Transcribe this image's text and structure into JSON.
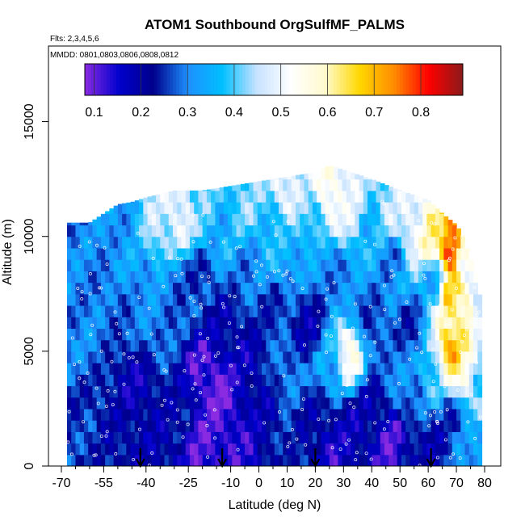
{
  "chart_data": {
    "type": "heatmap",
    "title": "ATOM1 Southbound OrgSulfMF_PALMS",
    "subtitle_flights": "Flts: 2,3,4,5,6",
    "subtitle_dates": "MMDD: 0801,0803,0806,0808,0812",
    "xlabel": "Latitude (deg N)",
    "ylabel": "Altitude (m)",
    "xlim": [
      -70,
      80
    ],
    "ylim": [
      0,
      17500
    ],
    "x_ticks": [
      -70,
      -55,
      -40,
      -25,
      -10,
      0,
      10,
      20,
      30,
      40,
      50,
      60,
      70,
      80
    ],
    "x_tick_labels": [
      "-70",
      "-55",
      "-40",
      "-25",
      "-10",
      "0",
      "10",
      "20",
      "30",
      "40",
      "50",
      "60",
      "70",
      "80"
    ],
    "x_minor_ticks": [
      -65,
      -60,
      -50,
      -45,
      -35,
      -30,
      -20,
      -15,
      -5,
      5,
      15,
      25,
      35,
      45,
      55,
      65,
      75
    ],
    "y_ticks": [
      0,
      5000,
      10000,
      15000
    ],
    "y_tick_labels": [
      "0",
      "5000",
      "10000",
      "15000"
    ],
    "colorbar": {
      "range": [
        0.08,
        0.89
      ],
      "ticks": [
        0.1,
        0.2,
        0.3,
        0.4,
        0.5,
        0.6,
        0.7,
        0.8
      ],
      "tick_labels": [
        "0.1",
        "0.2",
        "0.3",
        "0.4",
        "0.5",
        "0.6",
        "0.7",
        "0.8"
      ],
      "colors": [
        "#8a2be2",
        "#0000cd",
        "#00008b",
        "#1e90ff",
        "#00bfff",
        "#c6e2ff",
        "#ffffff",
        "#fffacd",
        "#ffd700",
        "#ff8c00",
        "#ff0000",
        "#8b1a1a"
      ]
    },
    "flight_arrows_latitude": [
      -42,
      -13,
      20,
      61
    ],
    "grid": false,
    "field": {
      "lat_range": [
        -68,
        79
      ],
      "alt_layers_m": [
        0,
        500,
        1000,
        1500,
        2000,
        2500,
        3000,
        3500,
        4000,
        4500,
        5000,
        5500,
        6000,
        6500,
        7000,
        7500,
        8000,
        8500,
        9000,
        9500,
        10000,
        10500,
        11000,
        11500,
        12000,
        12500
      ],
      "ceiling_m": [
        [
          -68,
          10600
        ],
        [
          -60,
          10600
        ],
        [
          -55,
          11000
        ],
        [
          -50,
          11400
        ],
        [
          -45,
          11500
        ],
        [
          -40,
          11700
        ],
        [
          -30,
          12000
        ],
        [
          -20,
          12000
        ],
        [
          -10,
          12200
        ],
        [
          0,
          12400
        ],
        [
          10,
          12600
        ],
        [
          20,
          12800
        ],
        [
          25,
          13100
        ],
        [
          30,
          12900
        ],
        [
          40,
          12500
        ],
        [
          50,
          12000
        ],
        [
          60,
          11600
        ],
        [
          65,
          11000
        ],
        [
          70,
          10500
        ],
        [
          75,
          9500
        ],
        [
          79,
          7000
        ]
      ],
      "anchors": [
        [
          -60,
          1000,
          0.25
        ],
        [
          -60,
          6000,
          0.3
        ],
        [
          -60,
          9500,
          0.3
        ],
        [
          -52,
          2000,
          0.22
        ],
        [
          -52,
          7000,
          0.28
        ],
        [
          -50,
          10000,
          0.32
        ],
        [
          -44,
          500,
          0.2
        ],
        [
          -44,
          3500,
          0.18
        ],
        [
          -44,
          9000,
          0.33
        ],
        [
          -36,
          1500,
          0.2
        ],
        [
          -36,
          6000,
          0.3
        ],
        [
          -36,
          10500,
          0.45
        ],
        [
          -28,
          2500,
          0.22
        ],
        [
          -28,
          7500,
          0.28
        ],
        [
          -28,
          11000,
          0.5
        ],
        [
          -20,
          1000,
          0.12
        ],
        [
          -20,
          4000,
          0.12
        ],
        [
          -20,
          8000,
          0.25
        ],
        [
          -20,
          11000,
          0.4
        ],
        [
          -15,
          3500,
          0.09
        ],
        [
          -12,
          1500,
          0.12
        ],
        [
          -12,
          6000,
          0.2
        ],
        [
          -12,
          10000,
          0.35
        ],
        [
          -5,
          500,
          0.15
        ],
        [
          -5,
          4500,
          0.18
        ],
        [
          -5,
          8500,
          0.3
        ],
        [
          -5,
          11500,
          0.42
        ],
        [
          3,
          2000,
          0.2
        ],
        [
          3,
          6500,
          0.25
        ],
        [
          3,
          10500,
          0.38
        ],
        [
          10,
          1000,
          0.25
        ],
        [
          10,
          4000,
          0.3
        ],
        [
          10,
          9500,
          0.35
        ],
        [
          10,
          12000,
          0.5
        ],
        [
          18,
          2000,
          0.22
        ],
        [
          18,
          6000,
          0.2
        ],
        [
          18,
          11000,
          0.4
        ],
        [
          25,
          500,
          0.15
        ],
        [
          25,
          4500,
          0.35
        ],
        [
          25,
          8500,
          0.3
        ],
        [
          25,
          12000,
          0.55
        ],
        [
          32,
          1500,
          0.18
        ],
        [
          32,
          5000,
          0.55
        ],
        [
          32,
          7500,
          0.3
        ],
        [
          32,
          11000,
          0.48
        ],
        [
          40,
          2500,
          0.2
        ],
        [
          40,
          6000,
          0.25
        ],
        [
          40,
          10000,
          0.35
        ],
        [
          47,
          1000,
          0.12
        ],
        [
          47,
          4500,
          0.3
        ],
        [
          47,
          9000,
          0.3
        ],
        [
          47,
          11000,
          0.45
        ],
        [
          54,
          500,
          0.2
        ],
        [
          54,
          3000,
          0.3
        ],
        [
          54,
          6000,
          0.25
        ],
        [
          54,
          10500,
          0.5
        ],
        [
          62,
          1000,
          0.2
        ],
        [
          62,
          4000,
          0.4
        ],
        [
          62,
          8000,
          0.35
        ],
        [
          62,
          10000,
          0.6
        ],
        [
          68,
          2000,
          0.25
        ],
        [
          68,
          5000,
          0.7
        ],
        [
          68,
          7500,
          0.65
        ],
        [
          68,
          9500,
          0.8
        ],
        [
          73,
          1000,
          0.3
        ],
        [
          73,
          4000,
          0.55
        ],
        [
          73,
          6500,
          0.62
        ],
        [
          73,
          9000,
          0.5
        ],
        [
          78,
          500,
          0.35
        ],
        [
          78,
          3500,
          0.4
        ],
        [
          78,
          6500,
          0.45
        ]
      ]
    }
  }
}
